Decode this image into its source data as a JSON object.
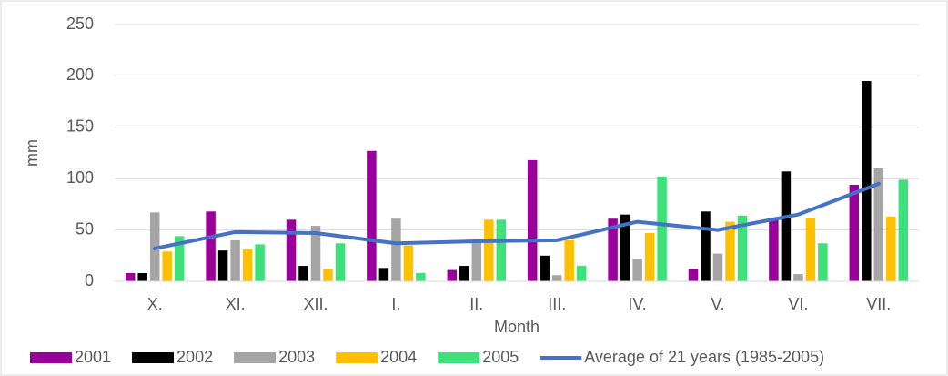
{
  "chart_data": {
    "type": "bar",
    "x_label": "Month",
    "y_label": "mm",
    "categories": [
      "X.",
      "XI.",
      "XII.",
      "I.",
      "II.",
      "III.",
      "IV.",
      "V.",
      "VI.",
      "VII."
    ],
    "series": [
      {
        "name": "2001",
        "color": "#990099",
        "values": [
          8,
          68,
          60,
          127,
          11,
          118,
          61,
          12,
          60,
          94
        ]
      },
      {
        "name": "2002",
        "color": "#000000",
        "values": [
          8,
          30,
          15,
          13,
          15,
          25,
          65,
          68,
          107,
          195
        ]
      },
      {
        "name": "2003",
        "color": "#a5a5a5",
        "values": [
          67,
          40,
          54,
          61,
          40,
          6,
          22,
          27,
          7,
          110
        ]
      },
      {
        "name": "2004",
        "color": "#ffc000",
        "values": [
          29,
          31,
          12,
          35,
          60,
          40,
          47,
          58,
          62,
          63
        ]
      },
      {
        "name": "2005",
        "color": "#3ee07a",
        "values": [
          44,
          36,
          37,
          8,
          60,
          15,
          102,
          64,
          37,
          99
        ]
      },
      {
        "name": "Average of 21 years (1985-2005)",
        "type": "line",
        "color": "#4472c4",
        "values": [
          32,
          48,
          47,
          37,
          39,
          40,
          58,
          50,
          65,
          95
        ]
      }
    ],
    "ylim": [
      0,
      250
    ],
    "yticks": [
      0,
      50,
      100,
      150,
      200,
      250
    ],
    "grid": true,
    "legend": "bottom"
  }
}
